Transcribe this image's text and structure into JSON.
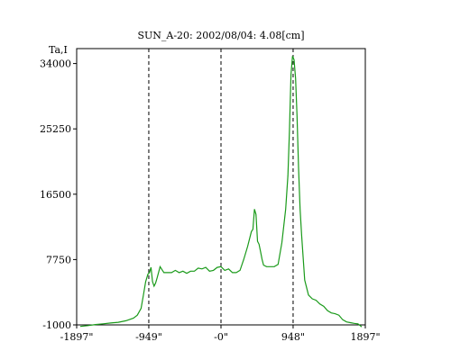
{
  "chart_data": {
    "type": "line",
    "title": "SUN_A-20: 2002/08/04: 4.08[cm]",
    "ylabel": "Ta,I",
    "xlim": [
      -1897,
      1897
    ],
    "ylim": [
      -1000,
      36000
    ],
    "x_ticks": [
      {
        "value": -1897,
        "label": "-1897\""
      },
      {
        "value": -949,
        "label": "-949\""
      },
      {
        "value": 0,
        "label": "-0\""
      },
      {
        "value": 948,
        "label": "948\""
      },
      {
        "value": 1897,
        "label": "1897\""
      }
    ],
    "y_ticks": [
      {
        "value": -1000,
        "label": "-1000"
      },
      {
        "value": 7750,
        "label": "7750"
      },
      {
        "value": 16500,
        "label": "16500"
      },
      {
        "value": 25250,
        "label": "25250"
      },
      {
        "value": 34000,
        "label": "34000"
      }
    ],
    "vlines": [
      -949,
      0,
      948
    ],
    "grid": false,
    "colors": {
      "line": "#1a9a1a",
      "frame": "#000000",
      "vline": "#000000"
    },
    "series": [
      {
        "x": [
          -1850,
          -1750,
          -1650,
          -1550,
          -1450,
          -1350,
          -1250,
          -1150,
          -1100,
          -1050,
          -1020,
          -990,
          -960,
          -940,
          -920,
          -900,
          -880,
          -860,
          -840,
          -800,
          -750,
          -700,
          -650,
          -600,
          -550,
          -500,
          -450,
          -400,
          -350,
          -300,
          -250,
          -200,
          -150,
          -100,
          -50,
          0,
          50,
          100,
          150,
          200,
          250,
          300,
          350,
          400,
          420,
          440,
          460,
          480,
          500,
          520,
          540,
          560,
          600,
          650,
          700,
          750,
          800,
          850,
          880,
          900,
          920,
          940,
          960,
          980,
          1000,
          1020,
          1040,
          1060,
          1080,
          1100,
          1150,
          1200,
          1250,
          1300,
          1350,
          1400,
          1450,
          1500,
          1550,
          1600,
          1650,
          1700,
          1750,
          1800,
          1850
        ],
        "y": [
          -1200,
          -1100,
          -950,
          -850,
          -750,
          -650,
          -450,
          -100,
          300,
          1200,
          3000,
          4800,
          5800,
          6000,
          6700,
          4800,
          4200,
          4600,
          5300,
          6800,
          6000,
          6000,
          6000,
          6300,
          6000,
          6200,
          5900,
          6200,
          6200,
          6600,
          6500,
          6700,
          6200,
          6300,
          6700,
          6800,
          6300,
          6500,
          6000,
          6000,
          6300,
          7800,
          9500,
          11500,
          11800,
          14500,
          13800,
          10200,
          9800,
          8800,
          7800,
          7000,
          6800,
          6800,
          6800,
          7100,
          10000,
          14500,
          19000,
          25000,
          32500,
          35000,
          34500,
          32000,
          27000,
          20000,
          14500,
          11000,
          8000,
          5000,
          3000,
          2500,
          2300,
          1800,
          1500,
          900,
          600,
          500,
          300,
          -300,
          -600,
          -700,
          -800,
          -850,
          -1250
        ]
      }
    ]
  }
}
